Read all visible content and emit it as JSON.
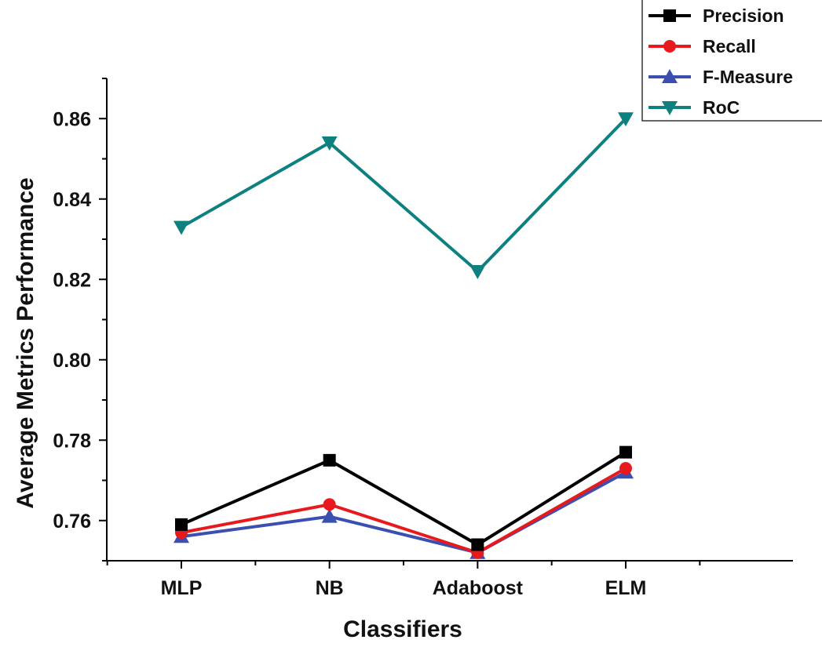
{
  "chart_data": {
    "type": "line",
    "title": "",
    "xlabel": "Classifiers",
    "ylabel": "Average Metrics Performance",
    "categories": [
      "MLP",
      "NB",
      "Adaboost",
      "ELM"
    ],
    "ylim": [
      0.75,
      0.87
    ],
    "yticks": [
      0.76,
      0.78,
      0.8,
      0.82,
      0.84,
      0.86
    ],
    "ytick_labels": [
      "0.76",
      "0.78",
      "0.80",
      "0.82",
      "0.84",
      "0.86"
    ],
    "grid": false,
    "legend_position": "top-right",
    "series": [
      {
        "name": "Precision",
        "values": [
          0.759,
          0.775,
          0.754,
          0.777
        ],
        "color": "#000000",
        "marker": "square"
      },
      {
        "name": "Recall",
        "values": [
          0.757,
          0.764,
          0.752,
          0.773
        ],
        "color": "#e8191c",
        "marker": "circle"
      },
      {
        "name": "F-Measure",
        "values": [
          0.756,
          0.761,
          0.752,
          0.772
        ],
        "color": "#3a4fb0",
        "marker": "triangle-up"
      },
      {
        "name": "RoC",
        "values": [
          0.833,
          0.854,
          0.822,
          0.86
        ],
        "color": "#0f8080",
        "marker": "triangle-down"
      }
    ]
  }
}
